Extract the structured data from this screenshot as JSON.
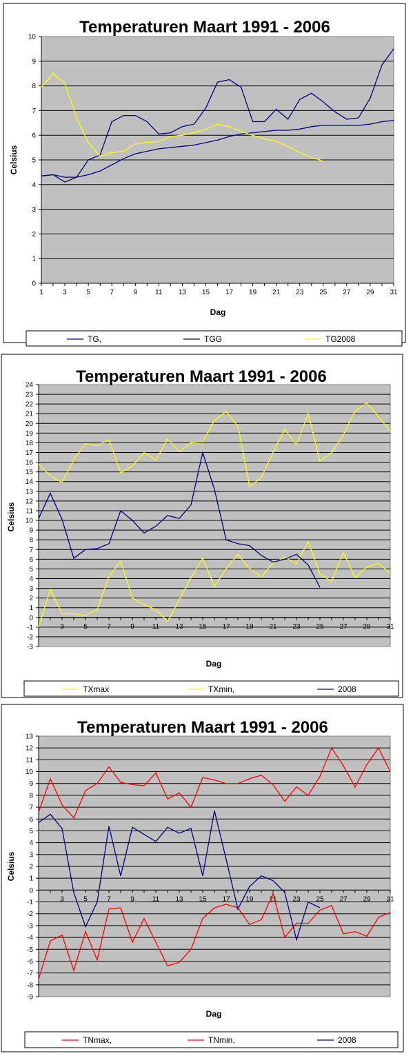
{
  "chart_data": [
    {
      "type": "line",
      "title": "Temperaturen Maart 1991 - 2006",
      "xlabel": "Dag",
      "ylabel": "Celsius",
      "ylim": [
        0,
        10
      ],
      "yticks": [
        "0",
        "1",
        "2",
        "3",
        "4",
        "5",
        "6",
        "7",
        "8",
        "9",
        "10"
      ],
      "xticks": [
        "1",
        "3",
        "5",
        "7",
        "9",
        "11",
        "13",
        "15",
        "17",
        "19",
        "21",
        "23",
        "25",
        "27",
        "29",
        "31"
      ],
      "grid": true,
      "legend": "bottom",
      "plot_bg": "#c0c0c0",
      "series": [
        {
          "name": "TG,",
          "color": "#000080",
          "x": [
            1,
            2,
            3,
            4,
            5,
            6,
            7,
            8,
            9,
            10,
            11,
            12,
            13,
            14,
            15,
            16,
            17,
            18,
            19,
            20,
            21,
            22,
            23,
            24,
            25,
            26,
            27,
            28,
            29,
            30,
            31
          ],
          "values": [
            4.35,
            4.4,
            4.1,
            4.3,
            5.0,
            5.2,
            6.55,
            6.8,
            6.8,
            6.55,
            6.05,
            6.1,
            6.35,
            6.45,
            7.1,
            8.15,
            8.25,
            7.95,
            6.55,
            6.55,
            7.05,
            6.65,
            7.45,
            7.7,
            7.35,
            6.95,
            6.65,
            6.7,
            7.5,
            8.85,
            9.5
          ]
        },
        {
          "name": "TGG",
          "color": "#000080",
          "x": [
            1,
            2,
            3,
            4,
            5,
            6,
            7,
            8,
            9,
            10,
            11,
            12,
            13,
            14,
            15,
            16,
            17,
            18,
            19,
            20,
            21,
            22,
            23,
            24,
            25,
            26,
            27,
            28,
            29,
            30,
            31
          ],
          "values": [
            4.35,
            4.4,
            4.3,
            4.3,
            4.4,
            4.55,
            4.8,
            5.05,
            5.25,
            5.35,
            5.45,
            5.5,
            5.55,
            5.6,
            5.7,
            5.8,
            5.95,
            6.05,
            6.1,
            6.15,
            6.2,
            6.2,
            6.25,
            6.35,
            6.4,
            6.4,
            6.4,
            6.4,
            6.45,
            6.55,
            6.6
          ]
        },
        {
          "name": "TG2008",
          "color": "#ffff00",
          "x": [
            1,
            2,
            3,
            4,
            5,
            6,
            7,
            8,
            9,
            10,
            11,
            12,
            13,
            14,
            15,
            16,
            17,
            18,
            19,
            20,
            21,
            22,
            23,
            24,
            25
          ],
          "values": [
            7.95,
            8.5,
            8.1,
            6.7,
            5.7,
            5.15,
            5.3,
            5.35,
            5.65,
            5.7,
            5.75,
            5.95,
            6.0,
            6.1,
            6.25,
            6.45,
            6.35,
            6.15,
            6.0,
            5.85,
            5.75,
            5.55,
            5.3,
            5.1,
            4.95
          ]
        }
      ]
    },
    {
      "type": "line",
      "title": "Temperaturen Maart 1991 - 2006",
      "xlabel": "Dag",
      "ylabel": "Celsius",
      "ylim": [
        -3,
        24
      ],
      "yticks": [
        "-3",
        "-2",
        "-1",
        "0",
        "1",
        "2",
        "3",
        "4",
        "5",
        "6",
        "7",
        "8",
        "9",
        "10",
        "11",
        "12",
        "13",
        "14",
        "15",
        "16",
        "17",
        "18",
        "19",
        "20",
        "21",
        "22",
        "23",
        "24"
      ],
      "xticks": [
        "3",
        "5",
        "7",
        "9",
        "11",
        "13",
        "15",
        "17",
        "19",
        "21",
        "23",
        "25",
        "27",
        "29",
        "31"
      ],
      "grid": true,
      "legend": "bottom",
      "plot_bg": "#c0c0c0",
      "series": [
        {
          "name": "TXmax",
          "color": "#ffff00",
          "x": [
            1,
            2,
            3,
            4,
            5,
            6,
            7,
            8,
            9,
            10,
            11,
            12,
            13,
            14,
            15,
            16,
            17,
            18,
            19,
            20,
            21,
            22,
            23,
            24,
            25,
            26,
            27,
            28,
            29,
            30,
            31
          ],
          "values": [
            15.8,
            14.6,
            13.9,
            16.3,
            17.9,
            17.7,
            18.3,
            14.9,
            15.6,
            17.0,
            16.2,
            18.4,
            17.1,
            18.0,
            18.1,
            20.3,
            21.2,
            19.7,
            13.5,
            14.4,
            17.0,
            19.4,
            17.8,
            21.0,
            16.1,
            17.0,
            18.8,
            21.3,
            22.1,
            20.7,
            19.2
          ]
        },
        {
          "name": "TXmin,",
          "color": "#ffff00",
          "x": [
            1,
            2,
            3,
            4,
            5,
            6,
            7,
            8,
            9,
            10,
            11,
            12,
            13,
            14,
            15,
            16,
            17,
            18,
            19,
            20,
            21,
            22,
            23,
            24,
            25,
            26,
            27,
            28,
            29,
            30,
            31
          ],
          "values": [
            -1.0,
            2.9,
            0.4,
            0.4,
            0.2,
            0.8,
            4.2,
            5.8,
            2.0,
            1.3,
            0.8,
            -0.4,
            1.8,
            4.1,
            6.1,
            3.2,
            5.0,
            6.5,
            5.0,
            4.2,
            5.6,
            6.2,
            5.5,
            7.8,
            4.5,
            3.7,
            6.7,
            4.1,
            5.2,
            5.6,
            4.5
          ]
        },
        {
          "name": "2008",
          "color": "#000080",
          "x": [
            1,
            2,
            3,
            4,
            5,
            6,
            7,
            8,
            9,
            10,
            11,
            12,
            13,
            14,
            15,
            16,
            17,
            18,
            19,
            20,
            21,
            22,
            23,
            24,
            25
          ],
          "values": [
            10.2,
            12.8,
            10.1,
            6.1,
            7.0,
            7.1,
            7.6,
            11.0,
            10.0,
            8.7,
            9.4,
            10.5,
            10.2,
            11.6,
            17.0,
            13.2,
            8.0,
            7.6,
            7.4,
            6.4,
            5.7,
            6.0,
            6.5,
            5.4,
            3.1
          ]
        }
      ]
    },
    {
      "type": "line",
      "title": "Temperaturen Maart 1991 - 2006",
      "xlabel": "Dag",
      "ylabel": "Celsius",
      "ylim": [
        -9,
        13
      ],
      "yticks": [
        "-9",
        "-8",
        "-7",
        "-6",
        "-5",
        "-4",
        "-3",
        "-2",
        "-1",
        "0",
        "1",
        "2",
        "3",
        "4",
        "5",
        "6",
        "7",
        "8",
        "9",
        "10",
        "11",
        "12",
        "13"
      ],
      "xticks": [
        "3",
        "5",
        "7",
        "9",
        "11",
        "13",
        "15",
        "17",
        "19",
        "21",
        "23",
        "25",
        "27",
        "29",
        "31"
      ],
      "grid": true,
      "legend": "bottom",
      "plot_bg": "#c0c0c0",
      "series": [
        {
          "name": "TNmax,",
          "color": "#ff0000",
          "x": [
            1,
            2,
            3,
            4,
            5,
            6,
            7,
            8,
            9,
            10,
            11,
            12,
            13,
            14,
            15,
            16,
            17,
            18,
            19,
            20,
            21,
            22,
            23,
            24,
            25,
            26,
            27,
            28,
            29,
            30,
            31
          ],
          "values": [
            6.6,
            9.4,
            7.2,
            6.1,
            8.4,
            9.0,
            10.4,
            9.1,
            8.9,
            8.8,
            9.9,
            7.7,
            8.2,
            7.0,
            9.5,
            9.3,
            9.0,
            9.0,
            9.4,
            9.7,
            8.9,
            7.5,
            8.7,
            8.0,
            9.6,
            12.0,
            10.5,
            8.7,
            10.6,
            12.0,
            10.0
          ]
        },
        {
          "name": "TNmin,",
          "color": "#ff0000",
          "x": [
            1,
            2,
            3,
            4,
            5,
            6,
            7,
            8,
            9,
            10,
            11,
            12,
            13,
            14,
            15,
            16,
            17,
            18,
            19,
            20,
            21,
            22,
            23,
            24,
            25,
            26,
            27,
            28,
            29,
            30,
            31
          ],
          "values": [
            -7.5,
            -4.3,
            -3.8,
            -6.8,
            -3.5,
            -5.9,
            -1.6,
            -1.5,
            -4.4,
            -2.4,
            -4.4,
            -6.4,
            -6.1,
            -5.0,
            -2.4,
            -1.5,
            -1.2,
            -1.5,
            -2.9,
            -2.5,
            -0.3,
            -4.0,
            -2.8,
            -2.8,
            -1.7,
            -1.3,
            -3.7,
            -3.5,
            -3.9,
            -2.3,
            -1.9
          ]
        },
        {
          "name": "2008",
          "color": "#000080",
          "x": [
            1,
            2,
            3,
            4,
            5,
            6,
            7,
            8,
            9,
            10,
            11,
            12,
            13,
            14,
            15,
            16,
            17,
            18,
            19,
            20,
            21,
            22,
            23,
            24,
            25
          ],
          "values": [
            5.7,
            6.4,
            5.2,
            -0.2,
            -3.1,
            -1.0,
            5.4,
            1.2,
            5.3,
            4.7,
            4.1,
            5.3,
            4.8,
            5.2,
            1.2,
            6.7,
            2.6,
            -1.6,
            0.3,
            1.2,
            0.8,
            -0.2,
            -4.2,
            -1.0,
            -1.5
          ]
        }
      ]
    }
  ]
}
